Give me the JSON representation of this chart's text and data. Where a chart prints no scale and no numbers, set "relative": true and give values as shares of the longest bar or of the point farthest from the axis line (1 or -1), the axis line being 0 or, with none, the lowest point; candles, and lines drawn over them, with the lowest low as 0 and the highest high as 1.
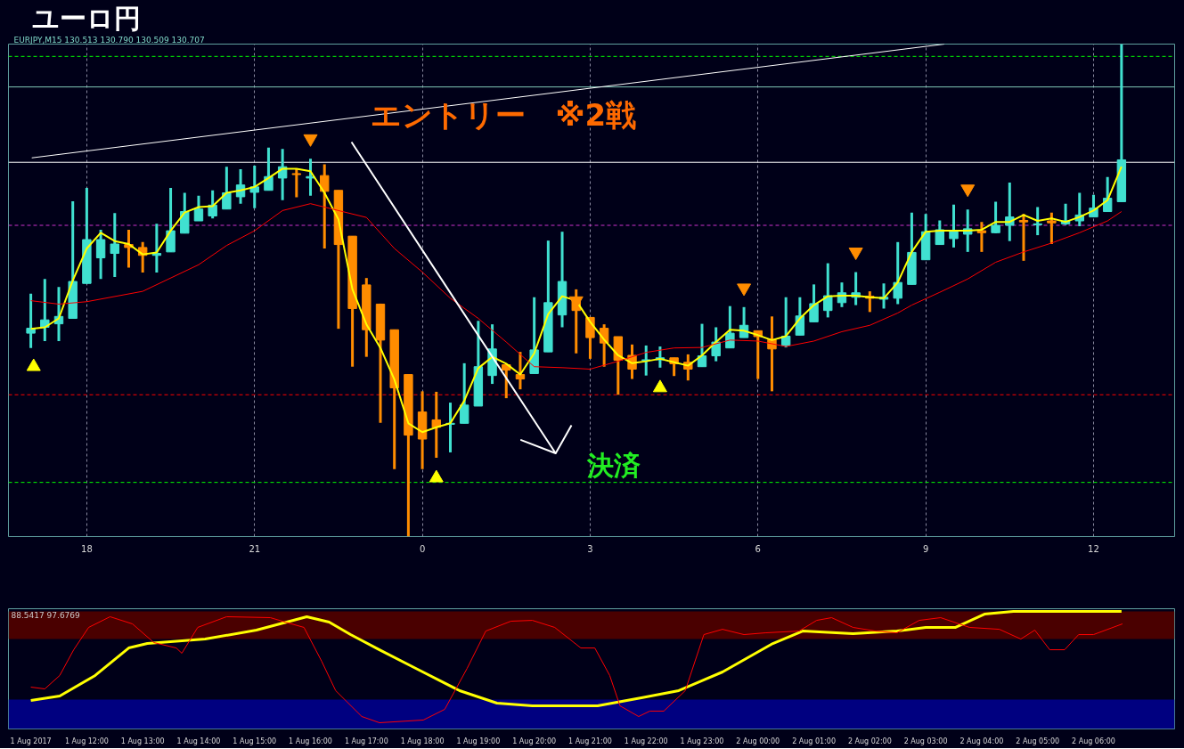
{
  "chart_data": [
    {
      "type": "candlestick",
      "title": "ユーロ円",
      "relative": true,
      "grid": "x",
      "annotations": [
        "EURJPY,M15  130.513 130.790 130.509 130.707",
        "エントリー　※2戦",
        "決済"
      ],
      "xlim": [
        "2017-08-01T16:36",
        "2017-08-02T13:27"
      ],
      "xticks": [
        {
          "value": "2017-08-01T18:00",
          "label": "18"
        },
        {
          "value": "2017-08-01T21:00",
          "label": "21"
        },
        {
          "value": "2017-08-02T00:00",
          "label": "0"
        },
        {
          "value": "2017-08-02T03:00",
          "label": "3"
        },
        {
          "value": "2017-08-02T06:00",
          "label": "6"
        },
        {
          "value": "2017-08-02T09:00",
          "label": "9"
        },
        {
          "value": "2017-08-02T12:00",
          "label": "12"
        }
      ],
      "x": [
        "2017-08-01T17:00",
        "2017-08-01T17:15",
        "2017-08-01T17:30",
        "2017-08-01T17:45",
        "2017-08-01T18:00",
        "2017-08-01T18:15",
        "2017-08-01T18:30",
        "2017-08-01T18:45",
        "2017-08-01T19:00",
        "2017-08-01T19:15",
        "2017-08-01T19:30",
        "2017-08-01T19:45",
        "2017-08-01T20:00",
        "2017-08-01T20:15",
        "2017-08-01T20:30",
        "2017-08-01T20:45",
        "2017-08-01T21:00",
        "2017-08-01T21:15",
        "2017-08-01T21:30",
        "2017-08-01T21:45",
        "2017-08-01T22:00",
        "2017-08-01T22:15",
        "2017-08-01T22:30",
        "2017-08-01T22:45",
        "2017-08-01T23:00",
        "2017-08-01T23:15",
        "2017-08-01T23:30",
        "2017-08-01T23:45",
        "2017-08-02T00:00",
        "2017-08-02T00:15",
        "2017-08-02T00:30",
        "2017-08-02T00:45",
        "2017-08-02T01:00",
        "2017-08-02T01:15",
        "2017-08-02T01:30",
        "2017-08-02T01:45",
        "2017-08-02T02:00",
        "2017-08-02T02:15",
        "2017-08-02T02:30",
        "2017-08-02T02:45",
        "2017-08-02T03:00",
        "2017-08-02T03:15",
        "2017-08-02T03:30",
        "2017-08-02T03:45",
        "2017-08-02T04:00",
        "2017-08-02T04:15",
        "2017-08-02T04:30",
        "2017-08-02T04:45",
        "2017-08-02T05:00",
        "2017-08-02T05:15",
        "2017-08-02T05:30",
        "2017-08-02T05:45",
        "2017-08-02T06:00",
        "2017-08-02T06:15",
        "2017-08-02T06:30",
        "2017-08-02T06:45",
        "2017-08-02T07:00",
        "2017-08-02T07:15",
        "2017-08-02T07:30",
        "2017-08-02T07:45",
        "2017-08-02T08:00",
        "2017-08-02T08:15",
        "2017-08-02T08:30",
        "2017-08-02T08:45",
        "2017-08-02T09:00",
        "2017-08-02T09:15",
        "2017-08-02T09:30",
        "2017-08-02T09:45",
        "2017-08-02T10:00",
        "2017-08-02T10:15",
        "2017-08-02T10:30",
        "2017-08-02T10:45",
        "2017-08-02T11:00",
        "2017-08-02T11:15",
        "2017-08-02T11:30",
        "2017-08-02T11:45",
        "2017-08-02T12:00",
        "2017-08-02T12:15",
        "2017-08-02T12:30"
      ],
      "ohlc": [
        [
          0.413,
          0.493,
          0.383,
          0.423
        ],
        [
          0.425,
          0.523,
          0.397,
          0.44
        ],
        [
          0.432,
          0.507,
          0.397,
          0.447
        ],
        [
          0.443,
          0.681,
          0.443,
          0.518
        ],
        [
          0.514,
          0.708,
          0.514,
          0.603
        ],
        [
          0.566,
          0.623,
          0.523,
          0.603
        ],
        [
          0.575,
          0.657,
          0.527,
          0.594
        ],
        [
          0.593,
          0.623,
          0.546,
          0.587
        ],
        [
          0.587,
          0.598,
          0.536,
          0.571
        ],
        [
          0.571,
          0.635,
          0.536,
          0.575
        ],
        [
          0.578,
          0.708,
          0.578,
          0.621
        ],
        [
          0.616,
          0.698,
          0.616,
          0.66
        ],
        [
          0.641,
          0.692,
          0.641,
          0.665
        ],
        [
          0.651,
          0.703,
          0.646,
          0.673
        ],
        [
          0.665,
          0.751,
          0.665,
          0.698
        ],
        [
          0.69,
          0.746,
          0.676,
          0.714
        ],
        [
          0.699,
          0.753,
          0.667,
          0.71
        ],
        [
          0.703,
          0.79,
          0.703,
          0.731
        ],
        [
          0.728,
          0.787,
          0.683,
          0.751
        ],
        [
          0.737,
          0.746,
          0.689,
          0.735
        ],
        [
          0.728,
          0.767,
          0.692,
          0.731
        ],
        [
          0.733,
          0.756,
          0.585,
          0.701
        ],
        [
          0.703,
          0.703,
          0.422,
          0.593
        ],
        [
          0.61,
          0.61,
          0.345,
          0.463
        ],
        [
          0.511,
          0.525,
          0.365,
          0.42
        ],
        [
          0.472,
          0.473,
          0.231,
          0.399
        ],
        [
          0.42,
          0.42,
          0.137,
          0.302
        ],
        [
          0.329,
          0.329,
          0,
          0.206
        ],
        [
          0.253,
          0.295,
          0.137,
          0.198
        ],
        [
          0.237,
          0.294,
          0.16,
          0.222
        ],
        [
          0.228,
          0.272,
          0.171,
          0.23
        ],
        [
          0.23,
          0.352,
          0.23,
          0.267
        ],
        [
          0.265,
          0.438,
          0.265,
          0.345
        ],
        [
          0.327,
          0.431,
          0.31,
          0.381
        ],
        [
          0.349,
          0.349,
          0.281,
          0.338
        ],
        [
          0.329,
          0.375,
          0.299,
          0.32
        ],
        [
          0.331,
          0.486,
          0.331,
          0.379
        ],
        [
          0.375,
          0.601,
          0.375,
          0.475
        ],
        [
          0.45,
          0.619,
          0.425,
          0.518
        ],
        [
          0.479,
          0.502,
          0.372,
          0.459
        ],
        [
          0.445,
          0.445,
          0.361,
          0.404
        ],
        [
          0.423,
          0.431,
          0.345,
          0.393
        ],
        [
          0.406,
          0.406,
          0.288,
          0.358
        ],
        [
          0.368,
          0.39,
          0.32,
          0.34
        ],
        [
          0.358,
          0.388,
          0.327,
          0.359
        ],
        [
          0.359,
          0.386,
          0.343,
          0.363
        ],
        [
          0.363,
          0.363,
          0.326,
          0.351
        ],
        [
          0.354,
          0.37,
          0.317,
          0.34
        ],
        [
          0.345,
          0.432,
          0.345,
          0.367
        ],
        [
          0.367,
          0.425,
          0.356,
          0.395
        ],
        [
          0.383,
          0.468,
          0.383,
          0.413
        ],
        [
          0.404,
          0.466,
          0.404,
          0.429
        ],
        [
          0.418,
          0.418,
          0.32,
          0.406
        ],
        [
          0.4,
          0.447,
          0.295,
          0.381
        ],
        [
          0.388,
          0.486,
          0.384,
          0.407
        ],
        [
          0.409,
          0.486,
          0.409,
          0.448
        ],
        [
          0.436,
          0.512,
          0.436,
          0.473
        ],
        [
          0.459,
          0.555,
          0.445,
          0.489
        ],
        [
          0.475,
          0.516,
          0.466,
          0.495
        ],
        [
          0.486,
          0.537,
          0.47,
          0.495
        ],
        [
          0.488,
          0.498,
          0.456,
          0.484
        ],
        [
          0.482,
          0.514,
          0.463,
          0.486
        ],
        [
          0.484,
          0.598,
          0.472,
          0.516
        ],
        [
          0.512,
          0.658,
          0.512,
          0.577
        ],
        [
          0.562,
          0.655,
          0.562,
          0.619
        ],
        [
          0.593,
          0.642,
          0.593,
          0.623
        ],
        [
          0.605,
          0.674,
          0.587,
          0.621
        ],
        [
          0.614,
          0.664,
          0.578,
          0.625
        ],
        [
          0.621,
          0.639,
          0.578,
          0.617
        ],
        [
          0.617,
          0.68,
          0.616,
          0.632
        ],
        [
          0.632,
          0.719,
          0.6,
          0.649
        ],
        [
          0.642,
          0.655,
          0.56,
          0.639
        ],
        [
          0.633,
          0.669,
          0.612,
          0.635
        ],
        [
          0.641,
          0.658,
          0.594,
          0.637
        ],
        [
          0.635,
          0.676,
          0.633,
          0.641
        ],
        [
          0.641,
          0.698,
          0.63,
          0.653
        ],
        [
          0.649,
          0.694,
          0.649,
          0.667
        ],
        [
          0.66,
          0.73,
          0.66,
          0.687
        ],
        [
          0.68,
          1,
          0.68,
          0.765
        ]
      ],
      "colors": [
        "#40e0d0",
        "#40e0d0",
        "#40e0d0",
        "#40e0d0",
        "#40e0d0",
        "#40e0d0",
        "#40e0d0",
        "#ff8c00",
        "#ff8c00",
        "#40e0d0",
        "#40e0d0",
        "#40e0d0",
        "#40e0d0",
        "#40e0d0",
        "#40e0d0",
        "#40e0d0",
        "#40e0d0",
        "#40e0d0",
        "#40e0d0",
        "#ff8c00",
        "#40e0d0",
        "#ff8c00",
        "#ff8c00",
        "#ff8c00",
        "#ff8c00",
        "#ff8c00",
        "#ff8c00",
        "#ff8c00",
        "#ff8c00",
        "#ff8c00",
        "#40e0d0",
        "#40e0d0",
        "#40e0d0",
        "#40e0d0",
        "#ff8c00",
        "#ff8c00",
        "#40e0d0",
        "#40e0d0",
        "#40e0d0",
        "#ff8c00",
        "#ff8c00",
        "#ff8c00",
        "#ff8c00",
        "#ff8c00",
        "#40e0d0",
        "#40e0d0",
        "#ff8c00",
        "#ff8c00",
        "#40e0d0",
        "#40e0d0",
        "#40e0d0",
        "#40e0d0",
        "#ff8c00",
        "#ff8c00",
        "#40e0d0",
        "#40e0d0",
        "#40e0d0",
        "#40e0d0",
        "#40e0d0",
        "#40e0d0",
        "#ff8c00",
        "#40e0d0",
        "#40e0d0",
        "#40e0d0",
        "#40e0d0",
        "#40e0d0",
        "#40e0d0",
        "#40e0d0",
        "#ff8c00",
        "#40e0d0",
        "#40e0d0",
        "#ff8c00",
        "#40e0d0",
        "#ff8c00",
        "#40e0d0",
        "#40e0d0",
        "#40e0d0",
        "#40e0d0",
        "#40e0d0"
      ],
      "series": [
        {
          "type": "line",
          "color": "#ffff00",
          "values": [
            0.422,
            0.425,
            0.443,
            0.52,
            0.585,
            0.617,
            0.6,
            0.594,
            0.573,
            0.577,
            0.621,
            0.658,
            0.669,
            0.671,
            0.698,
            0.703,
            0.71,
            0.728,
            0.747,
            0.747,
            0.742,
            0.698,
            0.644,
            0.502,
            0.431,
            0.383,
            0.319,
            0.23,
            0.212,
            0.222,
            0.23,
            0.276,
            0.342,
            0.365,
            0.351,
            0.329,
            0.372,
            0.452,
            0.488,
            0.479,
            0.436,
            0.4,
            0.368,
            0.352,
            0.356,
            0.361,
            0.354,
            0.347,
            0.368,
            0.395,
            0.42,
            0.418,
            0.409,
            0.399,
            0.407,
            0.443,
            0.47,
            0.488,
            0.489,
            0.489,
            0.486,
            0.484,
            0.516,
            0.578,
            0.619,
            0.621,
            0.621,
            0.621,
            0.623,
            0.639,
            0.639,
            0.653,
            0.641,
            0.646,
            0.639,
            0.649,
            0.662,
            0.683,
            0.751
          ]
        },
        {
          "type": "line",
          "color": "#ff0000",
          "x": [
            "2017-08-01T17:00",
            "2017-08-01T17:30",
            "2017-08-01T18:00",
            "2017-08-01T19:00",
            "2017-08-01T20:00",
            "2017-08-01T20:30",
            "2017-08-01T21:00",
            "2017-08-01T21:30",
            "2017-08-01T22:00",
            "2017-08-01T22:30",
            "2017-08-01T23:00",
            "2017-08-01T23:30",
            "2017-08-02T00:00",
            "2017-08-02T00:30",
            "2017-08-02T01:00",
            "2017-08-02T01:30",
            "2017-08-02T02:00",
            "2017-08-02T02:30",
            "2017-08-02T03:00",
            "2017-08-02T03:30",
            "2017-08-02T04:00",
            "2017-08-02T04:30",
            "2017-08-02T05:00",
            "2017-08-02T05:30",
            "2017-08-02T06:00",
            "2017-08-02T06:30",
            "2017-08-02T07:00",
            "2017-08-02T07:30",
            "2017-08-02T08:00",
            "2017-08-02T08:30",
            "2017-08-02T08:45",
            "2017-08-02T09:15",
            "2017-08-02T09:45",
            "2017-08-02T10:15",
            "2017-08-02T10:45",
            "2017-08-02T11:15",
            "2017-08-02T11:45",
            "2017-08-02T12:15",
            "2017-08-02T12:30"
          ],
          "values": [
            0.479,
            0.472,
            0.477,
            0.498,
            0.552,
            0.591,
            0.621,
            0.662,
            0.676,
            0.662,
            0.648,
            0.585,
            0.537,
            0.484,
            0.443,
            0.395,
            0.345,
            0.343,
            0.34,
            0.356,
            0.374,
            0.383,
            0.384,
            0.399,
            0.397,
            0.386,
            0.397,
            0.416,
            0.429,
            0.454,
            0.47,
            0.496,
            0.523,
            0.557,
            0.578,
            0.596,
            0.617,
            0.641,
            0.66
          ]
        },
        {
          "type": "line",
          "color": "#ffffff",
          "x": [
            "2017-08-01T17:01",
            "2017-08-02T09:20"
          ],
          "values": [
            0.769,
            1
          ]
        },
        {
          "type": "line",
          "color": "#ffffff",
          "x": [
            "2017-08-01T22:44",
            "2017-08-02T02:23",
            "2017-08-02T01:46",
            "2017-08-02T02:23",
            "2017-08-02T02:40"
          ],
          "values": [
            0.801,
            0.169,
            0.196,
            0.169,
            0.226
          ]
        },
        {
          "type": "scatter",
          "color": "#ff8c00",
          "marker": "triangle",
          "x": [
            "2017-08-01T22:00",
            "2017-08-02T02:45",
            "2017-08-02T05:45",
            "2017-08-02T07:45",
            "2017-08-02T09:45"
          ],
          "values": [
            0.808,
            0.479,
            0.505,
            0.578,
            0.706
          ]
        },
        {
          "type": "scatter",
          "color": "#ffff00",
          "marker": "triangle",
          "x": [
            "2017-08-01T17:03",
            "2017-08-02T00:15",
            "2017-08-02T04:15"
          ],
          "values": [
            0.345,
            0.119,
            0.302
          ]
        }
      ],
      "ref_lines": [
        {
          "axis": "y",
          "value": 0.975,
          "color": "#00ff00",
          "line_style": "dashed"
        },
        {
          "axis": "y",
          "value": 0.913,
          "color": "#7fc8b8",
          "line_style": "solid"
        },
        {
          "axis": "y",
          "value": 0.76,
          "color": "#ffffff",
          "line_style": "solid"
        },
        {
          "axis": "y",
          "value": 0.632,
          "color": "#cc33cc",
          "line_style": "dashed"
        },
        {
          "axis": "y",
          "value": 0.288,
          "color": "#ff0000",
          "line_style": "dashed"
        },
        {
          "axis": "y",
          "value": 0.11,
          "color": "#00ff00",
          "line_style": "dashed"
        }
      ]
    },
    {
      "type": "line",
      "relative": true,
      "annotations": [
        "88.5417 97.6769"
      ],
      "xlim": [
        "2017-08-01T10:36",
        "2017-08-02T07:27"
      ],
      "xticks": [
        {
          "value": "2017-08-01T11:00",
          "label": "1 Aug 2017"
        },
        {
          "value": "2017-08-01T12:00",
          "label": "1 Aug 12:00"
        },
        {
          "value": "2017-08-01T13:00",
          "label": "1 Aug 13:00"
        },
        {
          "value": "2017-08-01T14:00",
          "label": "1 Aug 14:00"
        },
        {
          "value": "2017-08-01T15:00",
          "label": "1 Aug 15:00"
        },
        {
          "value": "2017-08-01T16:00",
          "label": "1 Aug 16:00"
        },
        {
          "value": "2017-08-01T17:00",
          "label": "1 Aug 17:00"
        },
        {
          "value": "2017-08-01T18:00",
          "label": "1 Aug 18:00"
        },
        {
          "value": "2017-08-01T19:00",
          "label": "1 Aug 19:00"
        },
        {
          "value": "2017-08-01T20:00",
          "label": "1 Aug 20:00"
        },
        {
          "value": "2017-08-01T21:00",
          "label": "1 Aug 21:00"
        },
        {
          "value": "2017-08-01T22:00",
          "label": "1 Aug 22:00"
        },
        {
          "value": "2017-08-01T23:00",
          "label": "1 Aug 23:00"
        },
        {
          "value": "2017-08-02T00:00",
          "label": "2 Aug 00:00"
        },
        {
          "value": "2017-08-02T01:00",
          "label": "2 Aug 01:00"
        },
        {
          "value": "2017-08-02T02:00",
          "label": "2 Aug 02:00"
        },
        {
          "value": "2017-08-02T03:00",
          "label": "2 Aug 03:00"
        },
        {
          "value": "2017-08-02T04:00",
          "label": "2 Aug 04:00"
        },
        {
          "value": "2017-08-02T05:00",
          "label": "2 Aug 05:00"
        },
        {
          "value": "2017-08-02T06:00",
          "label": "2 Aug 06:00"
        }
      ],
      "bands": [
        {
          "axis": "y",
          "from": 0.765,
          "to": 1.0,
          "color": "#4a0000"
        },
        {
          "axis": "y",
          "from": 0.0,
          "to": 0.25,
          "color": "#000080"
        }
      ],
      "series": [
        {
          "color": "#ffff00",
          "x": [
            "2017-08-01T11:00",
            "2017-08-01T11:31",
            "2017-08-01T12:09",
            "2017-08-01T12:45",
            "2017-08-01T13:05",
            "2017-08-01T14:07",
            "2017-08-01T15:02",
            "2017-08-01T15:56",
            "2017-08-01T16:20",
            "2017-08-01T16:43",
            "2017-08-01T17:14",
            "2017-08-01T17:53",
            "2017-08-01T18:40",
            "2017-08-01T19:20",
            "2017-08-01T19:58",
            "2017-08-01T21:08",
            "2017-08-01T21:55",
            "2017-08-01T22:35",
            "2017-08-01T23:22",
            "2017-08-02T00:16",
            "2017-08-02T00:48",
            "2017-08-02T01:42",
            "2017-08-02T02:29",
            "2017-08-02T03:00",
            "2017-08-02T03:32",
            "2017-08-02T04:03",
            "2017-08-02T04:34",
            "2017-08-02T06:30"
          ],
          "values": [
            0.242,
            0.28,
            0.455,
            0.689,
            0.727,
            0.765,
            0.841,
            0.955,
            0.909,
            0.803,
            0.674,
            0.515,
            0.326,
            0.22,
            0.197,
            0.197,
            0.265,
            0.326,
            0.485,
            0.727,
            0.833,
            0.811,
            0.833,
            0.864,
            0.864,
            0.977,
            1.0,
            1.0
          ]
        },
        {
          "color": "#ff0000",
          "x": [
            "2017-08-01T11:00",
            "2017-08-01T11:15",
            "2017-08-01T11:31",
            "2017-08-01T11:46",
            "2017-08-01T12:02",
            "2017-08-01T12:25",
            "2017-08-01T12:49",
            "2017-08-01T13:12",
            "2017-08-01T13:36",
            "2017-08-01T13:42",
            "2017-08-01T13:59",
            "2017-08-01T14:30",
            "2017-08-01T15:17",
            "2017-08-01T15:33",
            "2017-08-01T15:53",
            "2017-08-01T16:12",
            "2017-08-01T16:27",
            "2017-08-01T16:55",
            "2017-08-01T17:14",
            "2017-08-01T18:01",
            "2017-08-01T18:24",
            "2017-08-01T18:48",
            "2017-08-01T19:08",
            "2017-08-01T19:35",
            "2017-08-01T19:58",
            "2017-08-01T20:22",
            "2017-08-01T20:50",
            "2017-08-01T21:05",
            "2017-08-01T21:21",
            "2017-08-01T21:32",
            "2017-08-01T21:52",
            "2017-08-01T22:04",
            "2017-08-01T22:19",
            "2017-08-01T22:42",
            "2017-08-01T23:02",
            "2017-08-01T23:22",
            "2017-08-01T23:45",
            "2017-08-02T00:08",
            "2017-08-02T00:44",
            "2017-08-02T01:03",
            "2017-08-02T01:19",
            "2017-08-02T01:42",
            "2017-08-02T02:06",
            "2017-08-02T02:29",
            "2017-08-02T02:53",
            "2017-08-02T03:16",
            "2017-08-02T03:47",
            "2017-08-02T04:19",
            "2017-08-02T04:42",
            "2017-08-02T04:57",
            "2017-08-02T05:13",
            "2017-08-02T05:29",
            "2017-08-02T05:44",
            "2017-08-02T06:00",
            "2017-08-02T06:31"
          ],
          "values": [
            0.356,
            0.341,
            0.455,
            0.674,
            0.864,
            0.955,
            0.894,
            0.735,
            0.689,
            0.644,
            0.864,
            0.955,
            0.947,
            0.909,
            0.864,
            0.576,
            0.326,
            0.106,
            0.053,
            0.076,
            0.167,
            0.515,
            0.833,
            0.917,
            0.924,
            0.864,
            0.689,
            0.689,
            0.455,
            0.197,
            0.106,
            0.152,
            0.152,
            0.326,
            0.803,
            0.848,
            0.803,
            0.818,
            0.833,
            0.924,
            0.947,
            0.864,
            0.833,
            0.818,
            0.924,
            0.947,
            0.864,
            0.848,
            0.765,
            0.841,
            0.674,
            0.674,
            0.803,
            0.803,
            0.894
          ]
        }
      ]
    }
  ]
}
